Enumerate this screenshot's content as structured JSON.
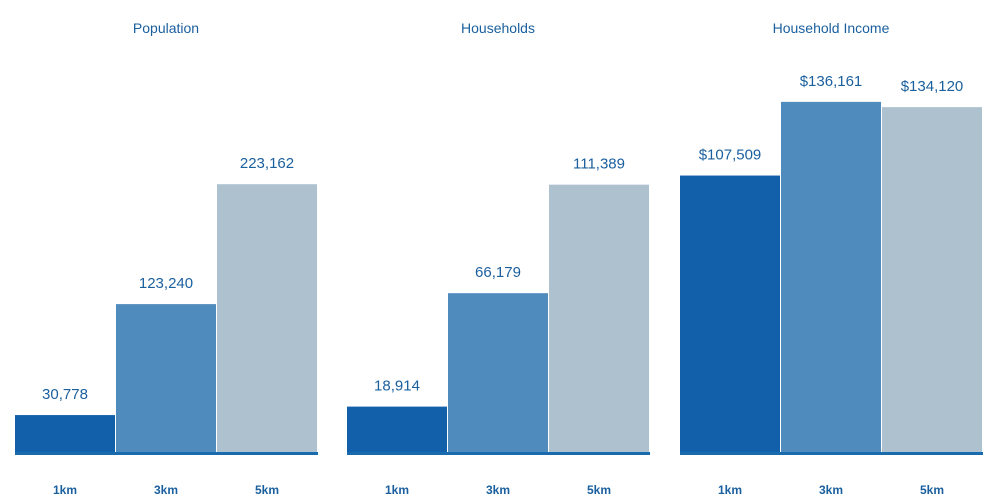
{
  "colors": {
    "baseline": "#1a6aae",
    "bar_1km": "#1360aa",
    "bar_3km": "#508bbe",
    "bar_5km": "#adc1cf",
    "text": "#1a5f9e"
  },
  "chart_data": [
    {
      "type": "bar",
      "title": "Population",
      "categories": [
        "1km",
        "3km",
        "5km"
      ],
      "values": [
        30778,
        123240,
        223162
      ],
      "value_labels": [
        "30,778",
        "123,240",
        "223,162"
      ],
      "ylim": [
        0,
        300000
      ]
    },
    {
      "type": "bar",
      "title": "Households",
      "categories": [
        "1km",
        "3km",
        "5km"
      ],
      "values": [
        18914,
        66179,
        111389
      ],
      "value_labels": [
        "18,914",
        "66,179",
        "111,389"
      ],
      "ylim": [
        0,
        150000
      ]
    },
    {
      "type": "bar",
      "title": "Household Income",
      "categories": [
        "1km",
        "3km",
        "5km"
      ],
      "values": [
        107509,
        136161,
        134120
      ],
      "value_labels": [
        "$107,509",
        "$136,161",
        "$134,120"
      ],
      "ylim": [
        0,
        140000
      ]
    }
  ]
}
